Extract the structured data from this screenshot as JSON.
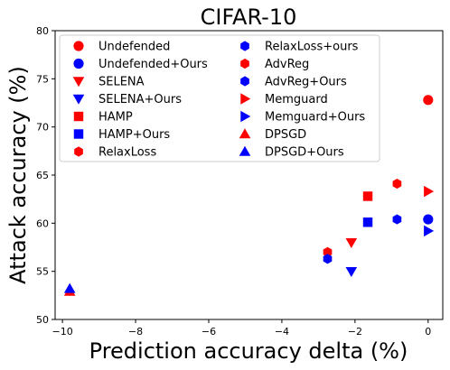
{
  "chart_data": {
    "type": "scatter",
    "title": "CIFAR-10",
    "xlabel": "Prediction accuracy delta (%)",
    "ylabel": "Attack accuracy (%)",
    "xlim": [
      -10.2,
      0.4
    ],
    "ylim": [
      50,
      80
    ],
    "xticks": [
      -10,
      -8,
      -6,
      -4,
      -2,
      0
    ],
    "yticks": [
      50,
      55,
      60,
      65,
      70,
      75,
      80
    ],
    "xtick_labels": [
      "−10",
      "−8",
      "−6",
      "−4",
      "−2",
      "0"
    ],
    "ytick_labels": [
      "50",
      "55",
      "60",
      "65",
      "70",
      "75",
      "80"
    ],
    "grid": false,
    "legend_placement": "top-left",
    "colors": {
      "baseline": "#ff0000",
      "ours": "#0000ff"
    },
    "series": [
      {
        "name": "Undefended",
        "marker": "circle",
        "color": "#ff0000",
        "points": [
          [
            0.0,
            72.8
          ]
        ]
      },
      {
        "name": "Undefended+Ours",
        "marker": "circle",
        "color": "#0000ff",
        "points": [
          [
            0.0,
            60.4
          ]
        ]
      },
      {
        "name": "SELENA",
        "marker": "triangle-down",
        "color": "#ff0000",
        "points": [
          [
            -2.1,
            58.0
          ]
        ]
      },
      {
        "name": "SELENA+Ours",
        "marker": "triangle-down",
        "color": "#0000ff",
        "points": [
          [
            -2.1,
            55.0
          ]
        ]
      },
      {
        "name": "HAMP",
        "marker": "square",
        "color": "#ff0000",
        "points": [
          [
            -1.65,
            62.8
          ]
        ]
      },
      {
        "name": "HAMP+Ours",
        "marker": "square",
        "color": "#0000ff",
        "points": [
          [
            -1.65,
            60.1
          ]
        ]
      },
      {
        "name": "RelaxLoss",
        "marker": "hexagon",
        "color": "#ff0000",
        "points": [
          [
            -2.75,
            57.0
          ]
        ]
      },
      {
        "name": "RelaxLoss+ours",
        "marker": "hexagon",
        "color": "#0000ff",
        "points": [
          [
            -2.75,
            56.3
          ]
        ]
      },
      {
        "name": "AdvReg",
        "marker": "hexagon",
        "color": "#ff0000",
        "points": [
          [
            -0.85,
            64.1
          ]
        ]
      },
      {
        "name": "AdvReg+Ours",
        "marker": "hexagon",
        "color": "#0000ff",
        "points": [
          [
            -0.85,
            60.4
          ]
        ]
      },
      {
        "name": "Memguard",
        "marker": "triangle-right",
        "color": "#ff0000",
        "points": [
          [
            0.0,
            63.3
          ]
        ]
      },
      {
        "name": "Memguard+Ours",
        "marker": "triangle-right",
        "color": "#0000ff",
        "points": [
          [
            0.0,
            59.2
          ]
        ]
      },
      {
        "name": "DPSGD",
        "marker": "triangle-up",
        "color": "#ff0000",
        "points": [
          [
            -9.8,
            52.9
          ]
        ]
      },
      {
        "name": "DPSGD+Ours",
        "marker": "triangle-up",
        "color": "#0000ff",
        "points": [
          [
            -9.8,
            53.2
          ]
        ]
      }
    ]
  }
}
